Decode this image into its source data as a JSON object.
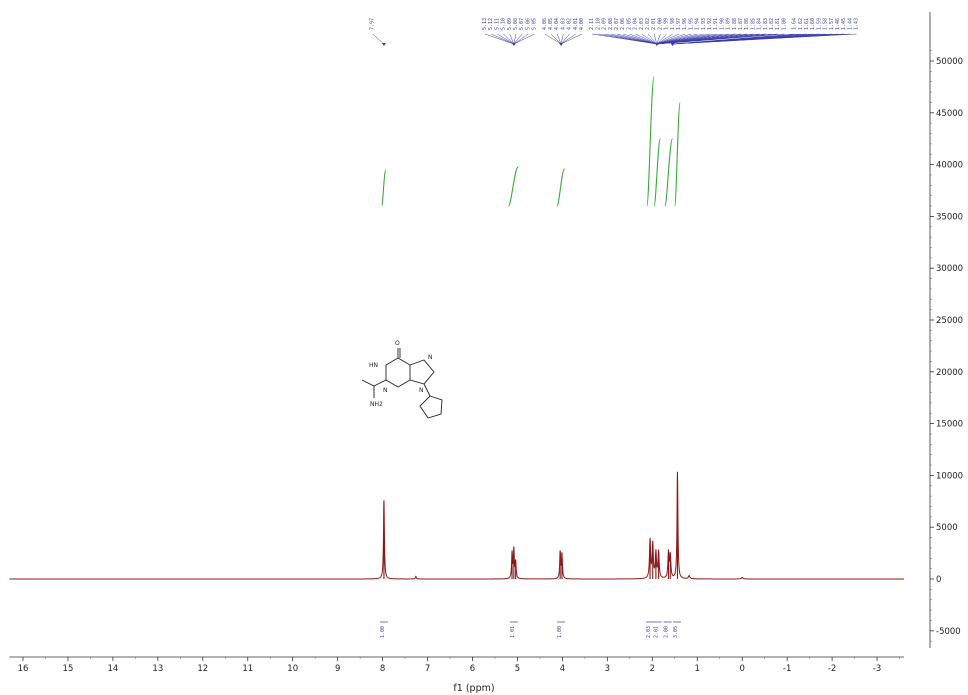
{
  "chart_data": {
    "type": "line",
    "title": "",
    "xlabel": "f1 (ppm)",
    "ylabel": "",
    "xlim": [
      16,
      -3.5
    ],
    "ylim": [
      -6000,
      51000
    ],
    "x_reversed": true,
    "grid": false,
    "x_ticks": [
      16,
      15,
      14,
      13,
      12,
      11,
      10,
      9,
      8,
      7,
      6,
      5,
      4,
      3,
      2,
      1,
      0,
      -1,
      -2,
      -3
    ],
    "y_ticks": [
      -5000,
      0,
      5000,
      10000,
      15000,
      20000,
      25000,
      30000,
      35000,
      40000,
      45000,
      50000
    ],
    "y_axis_position": "right",
    "series": [
      {
        "type": "spectrum",
        "color": "#8b1a1a",
        "peaks": [
          {
            "ppm": 7.97,
            "height": 7600,
            "width": 0.012
          },
          {
            "ppm": 7.26,
            "height": 250,
            "width": 0.012
          },
          {
            "ppm": 5.12,
            "height": 2500,
            "width": 0.012
          },
          {
            "ppm": 5.08,
            "height": 2800,
            "width": 0.012
          },
          {
            "ppm": 5.04,
            "height": 1600,
            "width": 0.012
          },
          {
            "ppm": 4.05,
            "height": 2600,
            "width": 0.012
          },
          {
            "ppm": 4.01,
            "height": 2400,
            "width": 0.012
          },
          {
            "ppm": 2.05,
            "height": 3700,
            "width": 0.015
          },
          {
            "ppm": 1.99,
            "height": 3300,
            "width": 0.015
          },
          {
            "ppm": 1.92,
            "height": 2500,
            "width": 0.015
          },
          {
            "ppm": 1.86,
            "height": 2600,
            "width": 0.015
          },
          {
            "ppm": 1.64,
            "height": 2500,
            "width": 0.015
          },
          {
            "ppm": 1.6,
            "height": 2200,
            "width": 0.015
          },
          {
            "ppm": 1.44,
            "height": 10300,
            "width": 0.012
          },
          {
            "ppm": 1.18,
            "height": 300,
            "width": 0.02
          },
          {
            "ppm": 0.0,
            "height": 150,
            "width": 0.02
          }
        ]
      }
    ],
    "integrals": [
      {
        "ppm_from": 8.02,
        "ppm_to": 7.93,
        "start": 36000,
        "end": 39500,
        "label": "1.00",
        "label_ppm": 7.97
      },
      {
        "ppm_from": 5.2,
        "ppm_to": 4.98,
        "start": 36000,
        "end": 39800,
        "label": "1.01",
        "label_ppm": 5.08
      },
      {
        "ppm_from": 4.12,
        "ppm_to": 3.95,
        "start": 36000,
        "end": 39600,
        "label": "1.00",
        "label_ppm": 4.03
      },
      {
        "ppm_from": 2.12,
        "ppm_to": 1.96,
        "start": 36000,
        "end": 48500,
        "label": "2.03",
        "label_ppm": 2.05
      },
      {
        "ppm_from": 1.96,
        "ppm_to": 1.82,
        "start": 36000,
        "end": 42500,
        "label": "2.01",
        "label_ppm": 1.88
      },
      {
        "ppm_from": 1.72,
        "ppm_to": 1.55,
        "start": 36000,
        "end": 42500,
        "label": "2.00",
        "label_ppm": 1.66
      },
      {
        "ppm_from": 1.5,
        "ppm_to": 1.38,
        "start": 36000,
        "end": 46000,
        "label": "3.05",
        "label_ppm": 1.45
      }
    ],
    "peak_groups": [
      {
        "labels": [
          "7.97"
        ],
        "target_ppm": 7.97
      },
      {
        "labels": [
          "5.13",
          "5.12",
          "5.11",
          "5.10",
          "5.09",
          "5.08",
          "5.07",
          "5.06",
          "5.05"
        ],
        "target_ppm": 5.08
      },
      {
        "labels": [
          "4.06",
          "4.05",
          "4.04",
          "4.03",
          "4.02",
          "4.01",
          "4.00"
        ],
        "target_ppm": 4.03
      },
      {
        "labels": [
          "2.11",
          "2.10",
          "2.09",
          "2.08",
          "2.07",
          "2.06",
          "2.05",
          "2.04",
          "2.03",
          "2.02",
          "2.01",
          "2.00",
          "1.99",
          "1.98",
          "1.97",
          "1.96",
          "1.95",
          "1.94",
          "1.93",
          "1.92",
          "1.91",
          "1.90",
          "1.89",
          "1.88",
          "1.87",
          "1.86",
          "1.85",
          "1.84",
          "1.83",
          "1.82",
          "1.81",
          "1.80"
        ],
        "target_ppm": 1.9
      },
      {
        "labels": [
          "1.64",
          "1.62",
          "1.61",
          "1.60",
          "1.59",
          "1.58",
          "1.57",
          "1.46",
          "1.45",
          "1.44",
          "1.43"
        ],
        "target_ppm": 1.55
      }
    ],
    "structure_labels": {
      "carbonyl": "O",
      "nh": "HN",
      "ring_n_top": "N",
      "ring_n_bottom": "N",
      "ring_n_left": "N",
      "amine": "NH2"
    }
  }
}
